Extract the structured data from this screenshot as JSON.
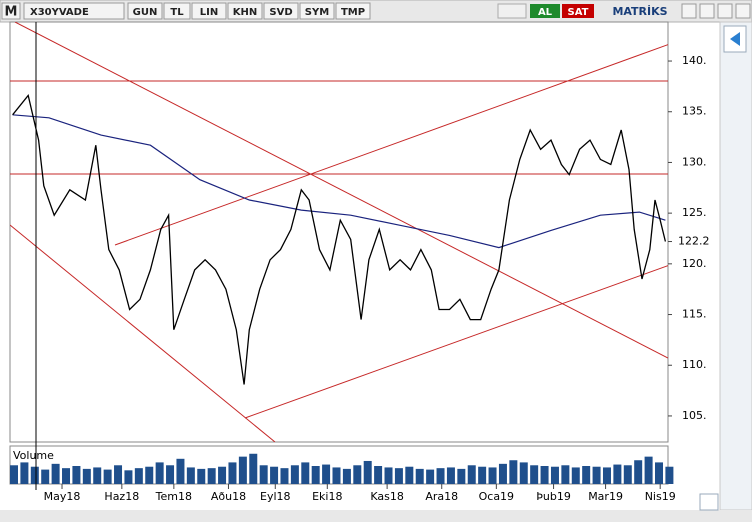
{
  "toolbar": {
    "logo_letter": "M",
    "symbol": "X30YVADE",
    "buttons": [
      "GUN",
      "TL",
      "LIN",
      "KHN",
      "SVD",
      "SYM",
      "TMP"
    ],
    "buy": "AL",
    "sell": "SAT",
    "brand": "MATRİKS"
  },
  "chart_data": {
    "type": "line",
    "color": "#000000",
    "x": [
      1,
      7,
      11,
      13,
      17,
      23,
      29,
      33,
      35,
      38,
      42,
      46,
      50,
      54,
      58,
      61,
      63,
      67,
      71,
      75,
      79,
      83,
      87,
      90,
      92,
      96,
      100,
      104,
      108,
      112,
      115,
      119,
      123,
      127,
      131,
      135,
      138,
      142,
      146,
      150,
      154,
      158,
      162,
      165,
      169,
      173,
      177,
      181,
      185,
      188,
      192,
      196,
      200,
      204,
      208,
      212,
      215,
      219,
      223,
      227,
      231,
      235,
      238,
      240,
      243,
      246,
      248,
      250,
      252
    ],
    "values": [
      134.7,
      136.6,
      132.2,
      127.7,
      124.8,
      127.3,
      126.3,
      131.7,
      127.3,
      121.4,
      119.4,
      115.5,
      116.5,
      119.4,
      123.4,
      124.8,
      113.5,
      116.5,
      119.4,
      120.4,
      119.4,
      117.5,
      113.5,
      108.1,
      113.5,
      117.5,
      120.4,
      121.4,
      123.4,
      127.3,
      126.3,
      121.4,
      119.4,
      124.3,
      122.4,
      114.5,
      120.4,
      123.4,
      119.4,
      120.4,
      119.4,
      121.4,
      119.4,
      115.5,
      115.5,
      116.5,
      114.5,
      114.5,
      117.5,
      119.4,
      126.3,
      130.3,
      133.2,
      131.3,
      132.2,
      129.8,
      128.8,
      131.3,
      132.2,
      130.3,
      129.8,
      133.2,
      129.3,
      123.4,
      118.5,
      121.4,
      126.3,
      124.3,
      122.2
    ],
    "moving_average": {
      "color": "#1a237e",
      "x": [
        1,
        15,
        35,
        54,
        73,
        92,
        112,
        131,
        150,
        169,
        188,
        208,
        227,
        242,
        252
      ],
      "values": [
        134.7,
        134.4,
        132.7,
        131.7,
        128.3,
        126.3,
        125.3,
        124.8,
        123.8,
        122.8,
        121.6,
        123.3,
        124.8,
        125.1,
        124.3
      ]
    },
    "last_value": 122.2,
    "xlim": [
      0,
      253
    ],
    "xticks": [
      {
        "value": 20,
        "label": "May18"
      },
      {
        "value": 43,
        "label": "Haz18"
      },
      {
        "value": 63,
        "label": "Tem18"
      },
      {
        "value": 84,
        "label": "Aðu18"
      },
      {
        "value": 102,
        "label": "Eyl18"
      },
      {
        "value": 122,
        "label": "Eki18"
      },
      {
        "value": 145,
        "label": "Kas18"
      },
      {
        "value": 166,
        "label": "Ara18"
      },
      {
        "value": 187,
        "label": "Oca19"
      },
      {
        "value": 209,
        "label": "Þub19"
      },
      {
        "value": 229,
        "label": "Mar19"
      },
      {
        "value": 250,
        "label": "Nis19"
      }
    ],
    "ylim": [
      102.43,
      143.85
    ],
    "yticks": [
      {
        "value": 105,
        "label": "105."
      },
      {
        "value": 110,
        "label": "110."
      },
      {
        "value": 115,
        "label": "115."
      },
      {
        "value": 120,
        "label": "120."
      },
      {
        "value": 125,
        "label": "125."
      },
      {
        "value": 130,
        "label": "130."
      },
      {
        "value": 135,
        "label": "135."
      },
      {
        "value": 140,
        "label": "140."
      }
    ],
    "volume": {
      "label": "Volume",
      "color": "#1f4f8c",
      "ylim": [
        0,
        500000
      ],
      "x": [
        0,
        4,
        8,
        12,
        16,
        20,
        24,
        28,
        32,
        36,
        40,
        44,
        48,
        52,
        56,
        60,
        64,
        68,
        72,
        76,
        80,
        84,
        88,
        92,
        96,
        100,
        104,
        108,
        112,
        116,
        120,
        124,
        128,
        132,
        136,
        140,
        144,
        148,
        152,
        156,
        160,
        164,
        168,
        172,
        176,
        180,
        184,
        188,
        192,
        196,
        200,
        204,
        208,
        212,
        216,
        220,
        224,
        228,
        232,
        236,
        240,
        244,
        248,
        252
      ],
      "values": [
        260000,
        300000,
        240000,
        200000,
        280000,
        220000,
        250000,
        210000,
        230000,
        200000,
        260000,
        190000,
        220000,
        240000,
        300000,
        260000,
        350000,
        230000,
        210000,
        220000,
        240000,
        300000,
        380000,
        420000,
        260000,
        240000,
        220000,
        260000,
        300000,
        250000,
        270000,
        230000,
        210000,
        260000,
        320000,
        250000,
        230000,
        220000,
        240000,
        210000,
        200000,
        220000,
        230000,
        210000,
        260000,
        240000,
        230000,
        280000,
        330000,
        300000,
        260000,
        250000,
        240000,
        260000,
        230000,
        250000,
        240000,
        230000,
        270000,
        260000,
        330000,
        380000,
        300000,
        240000
      ]
    }
  }
}
